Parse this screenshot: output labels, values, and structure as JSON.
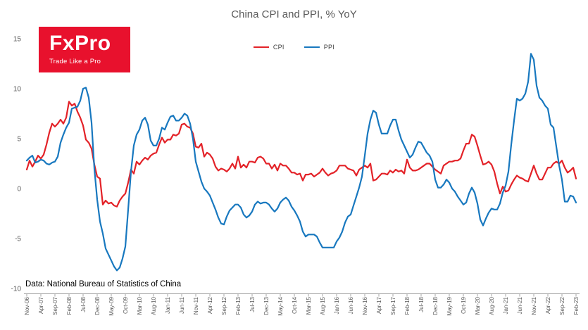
{
  "title": "China CPI and PPI, % YoY",
  "logo": {
    "name": "FxPro",
    "tagline": "Trade Like a Pro",
    "bg": "#e8112d"
  },
  "source": "Data: National Bureau of Statistics of China",
  "legend": [
    {
      "label": "CPI",
      "color": "#e32228"
    },
    {
      "label": "PPI",
      "color": "#1878bf"
    }
  ],
  "chart_data": {
    "type": "line",
    "title": "China CPI and PPI, % YoY",
    "x_frequency": "monthly",
    "x_start": "Nov-06",
    "x_end": "Feb-23",
    "ylim": [
      -10,
      15
    ],
    "yticks": [
      15,
      10,
      5,
      0,
      -5,
      -10
    ],
    "grid": false,
    "legend_position": "top-center",
    "categories": [
      "Nov-06",
      "Apr-07",
      "Sep-07",
      "Feb-08",
      "Jul-08",
      "Dec-08",
      "May-09",
      "Oct-09",
      "Mar-10",
      "Aug-10",
      "Jan-11",
      "Jun-11",
      "Nov-11",
      "Apr-12",
      "Sep-12",
      "Feb-13",
      "Jul-13",
      "Dec-13",
      "May-14",
      "Oct-14",
      "Mar-15",
      "Aug-15",
      "Jan-16",
      "Jun-16",
      "Nov-16",
      "Apr-17",
      "Sep-17",
      "Feb-18",
      "Jul-18",
      "Dec-18",
      "May-19",
      "Oct-19",
      "Mar-20",
      "Aug-20",
      "Jan-21",
      "Jun-21",
      "Nov-21",
      "Apr-22",
      "Sep-22",
      "Feb-23"
    ],
    "series": [
      {
        "name": "CPI",
        "color": "#e32228",
        "values": [
          1.9,
          2.8,
          2.2,
          2.7,
          3.3,
          3.0,
          3.4,
          4.4,
          5.6,
          6.5,
          6.2,
          6.5,
          6.9,
          6.5,
          7.1,
          8.7,
          8.3,
          8.5,
          7.7,
          7.1,
          6.3,
          4.9,
          4.6,
          4.0,
          2.4,
          1.2,
          1.0,
          -1.6,
          -1.2,
          -1.5,
          -1.4,
          -1.7,
          -1.8,
          -1.2,
          -0.8,
          -0.5,
          0.6,
          1.9,
          1.5,
          2.7,
          2.4,
          2.8,
          3.1,
          2.9,
          3.3,
          3.5,
          3.6,
          4.4,
          5.1,
          4.6,
          4.9,
          4.9,
          5.4,
          5.3,
          5.5,
          6.4,
          6.5,
          6.2,
          6.1,
          5.5,
          4.2,
          4.1,
          4.5,
          3.2,
          3.6,
          3.4,
          3.0,
          2.2,
          1.8,
          2.0,
          1.9,
          1.7,
          2.0,
          2.5,
          2.0,
          3.2,
          2.1,
          2.4,
          2.1,
          2.7,
          2.7,
          2.6,
          3.1,
          3.2,
          3.0,
          2.5,
          2.5,
          2.0,
          2.4,
          1.8,
          2.5,
          2.3,
          2.3,
          2.0,
          1.6,
          1.6,
          1.4,
          1.5,
          0.8,
          1.4,
          1.4,
          1.5,
          1.2,
          1.4,
          1.6,
          2.0,
          1.6,
          1.3,
          1.5,
          1.6,
          1.8,
          2.3,
          2.3,
          2.3,
          2.0,
          1.9,
          1.8,
          1.3,
          1.9,
          2.1,
          2.3,
          2.1,
          2.5,
          0.8,
          0.9,
          1.2,
          1.5,
          1.5,
          1.4,
          1.8,
          1.6,
          1.9,
          1.7,
          1.8,
          1.5,
          2.9,
          2.1,
          1.8,
          1.8,
          1.9,
          2.1,
          2.3,
          2.5,
          2.5,
          2.2,
          1.9,
          1.7,
          1.5,
          2.3,
          2.5,
          2.7,
          2.7,
          2.8,
          2.8,
          3.0,
          3.8,
          4.5,
          4.5,
          5.4,
          5.2,
          4.3,
          3.3,
          2.4,
          2.5,
          2.7,
          2.4,
          1.7,
          0.5,
          -0.5,
          0.2,
          -0.3,
          -0.2,
          0.4,
          0.9,
          1.3,
          1.1,
          1.0,
          0.8,
          0.7,
          1.5,
          2.3,
          1.5,
          0.9,
          0.9,
          1.5,
          2.1,
          2.1,
          2.5,
          2.7,
          2.5,
          2.8,
          2.1,
          1.6,
          1.8,
          2.1,
          1.0
        ]
      },
      {
        "name": "PPI",
        "color": "#1878bf",
        "values": [
          2.8,
          3.1,
          3.3,
          2.6,
          2.7,
          2.9,
          2.8,
          2.5,
          2.4,
          2.6,
          2.7,
          3.2,
          4.6,
          5.4,
          6.1,
          6.6,
          8.0,
          8.1,
          8.2,
          8.8,
          10.0,
          10.1,
          9.1,
          6.6,
          2.0,
          -1.1,
          -3.3,
          -4.5,
          -6.0,
          -6.6,
          -7.2,
          -7.8,
          -8.2,
          -7.9,
          -7.0,
          -5.8,
          -2.1,
          1.7,
          4.3,
          5.4,
          5.9,
          6.8,
          7.1,
          6.4,
          4.8,
          4.3,
          4.3,
          5.0,
          6.1,
          5.9,
          6.6,
          7.2,
          7.3,
          6.8,
          6.8,
          7.1,
          7.5,
          7.3,
          6.5,
          5.0,
          2.7,
          1.7,
          0.7,
          0.0,
          -0.3,
          -0.7,
          -1.4,
          -2.1,
          -2.9,
          -3.5,
          -3.6,
          -2.8,
          -2.2,
          -1.9,
          -1.6,
          -1.6,
          -1.9,
          -2.6,
          -2.9,
          -2.7,
          -2.3,
          -1.6,
          -1.3,
          -1.5,
          -1.4,
          -1.4,
          -1.6,
          -2.0,
          -2.3,
          -2.0,
          -1.4,
          -1.1,
          -0.9,
          -1.2,
          -1.8,
          -2.2,
          -2.7,
          -3.3,
          -4.3,
          -4.8,
          -4.6,
          -4.6,
          -4.6,
          -4.8,
          -5.4,
          -5.9,
          -5.9,
          -5.9,
          -5.9,
          -5.9,
          -5.3,
          -4.9,
          -4.3,
          -3.4,
          -2.8,
          -2.6,
          -1.7,
          -0.8,
          0.1,
          1.2,
          3.3,
          5.5,
          6.9,
          7.8,
          7.6,
          6.4,
          5.5,
          5.5,
          5.5,
          6.3,
          6.9,
          6.9,
          5.8,
          4.9,
          4.3,
          3.7,
          3.1,
          3.4,
          4.1,
          4.7,
          4.6,
          4.1,
          3.6,
          3.3,
          2.7,
          0.9,
          0.1,
          0.1,
          0.4,
          0.9,
          0.6,
          0.0,
          -0.3,
          -0.8,
          -1.2,
          -1.6,
          -1.4,
          -0.5,
          0.1,
          -0.4,
          -1.5,
          -3.1,
          -3.7,
          -3.0,
          -2.4,
          -2.0,
          -2.1,
          -2.1,
          -1.5,
          -0.4,
          0.3,
          1.7,
          4.4,
          6.8,
          9.0,
          8.8,
          9.0,
          9.5,
          10.7,
          13.5,
          12.9,
          10.3,
          9.1,
          8.8,
          8.3,
          8.0,
          6.4,
          6.1,
          4.2,
          2.3,
          0.9,
          -1.3,
          -1.3,
          -0.7,
          -0.8,
          -1.4
        ]
      }
    ]
  }
}
